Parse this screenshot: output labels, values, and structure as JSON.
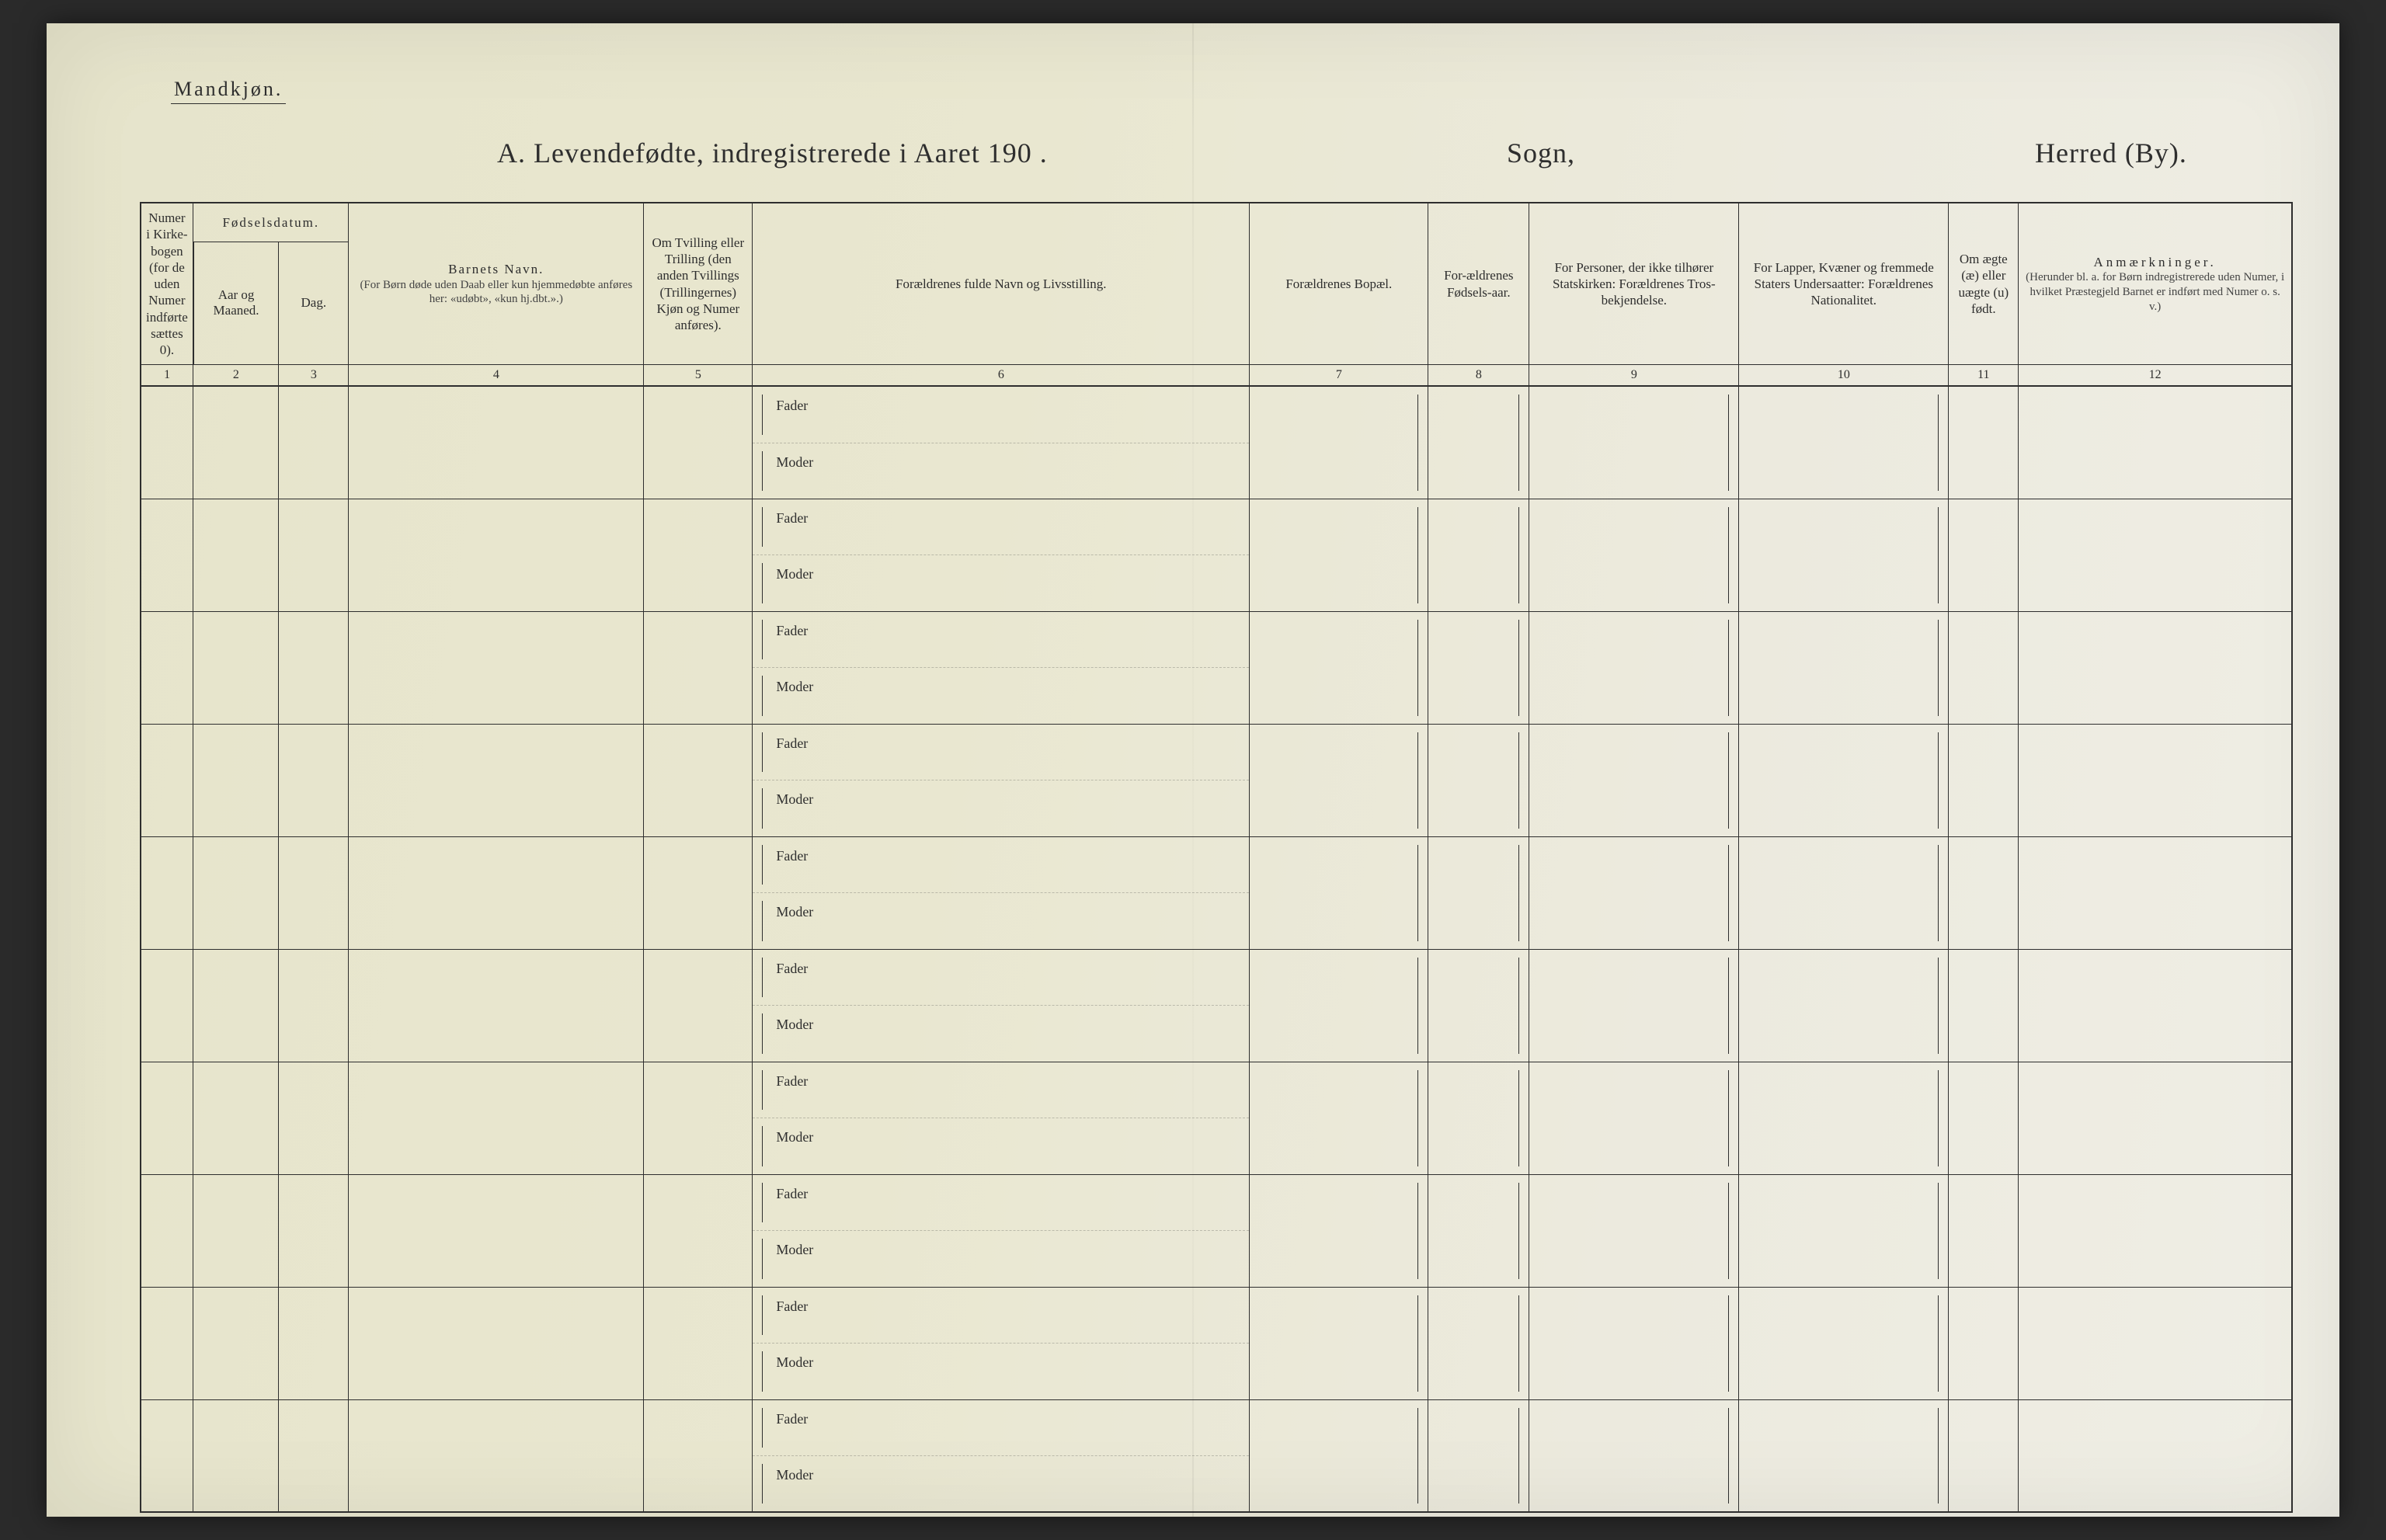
{
  "page": {
    "colors": {
      "paper_bg_light": "#efeee5",
      "paper_bg_dark": "#e6e4cb",
      "ink": "#2e2e2e",
      "outer_bg": "#2a2a2a"
    },
    "gender_label": "Mandkjøn.",
    "title_main": "A.  Levendefødte, indregistrerede i Aaret 190   .",
    "title_sogn": "Sogn,",
    "title_herred": "Herred (By).",
    "row_count": 10,
    "parent_labels": {
      "father": "Fader",
      "mother": "Moder"
    },
    "columns": [
      {
        "num": "1",
        "label": "Numer i Kirke-bogen (for de uden Numer indførte sættes 0)."
      },
      {
        "num": "2",
        "group": "Fødselsdatum.",
        "sublabel": "Aar og Maaned."
      },
      {
        "num": "3",
        "group": "Fødselsdatum.",
        "sublabel": "Dag."
      },
      {
        "num": "4",
        "label": "Barnets Navn.",
        "sublabel": "(For Børn døde uden Daab eller kun hjemmedøbte anføres her: «udøbt», «kun hj.dbt.».)"
      },
      {
        "num": "5",
        "label": "Om Tvilling eller Trilling (den anden Tvillings (Trillingernes) Kjøn og Numer anføres)."
      },
      {
        "num": "6",
        "label": "Forældrenes fulde Navn og Livsstilling."
      },
      {
        "num": "7",
        "label": "Forældrenes Bopæl."
      },
      {
        "num": "8",
        "label": "For-ældrenes Fødsels-aar."
      },
      {
        "num": "9",
        "label": "For Personer, der ikke tilhører Statskirken: Forældrenes Tros-bekjendelse."
      },
      {
        "num": "10",
        "label": "For Lapper, Kvæner og fremmede Staters Undersaatter: Forældrenes Nationalitet."
      },
      {
        "num": "11",
        "label": "Om ægte (æ) eller uægte (u) født."
      },
      {
        "num": "12",
        "label": "Anmærkninger.",
        "sublabel": "(Herunder bl. a. for Børn indregistrerede uden Numer, i hvilket Præstegjeld Barnet er indført med Numer o. s. v.)"
      }
    ]
  }
}
